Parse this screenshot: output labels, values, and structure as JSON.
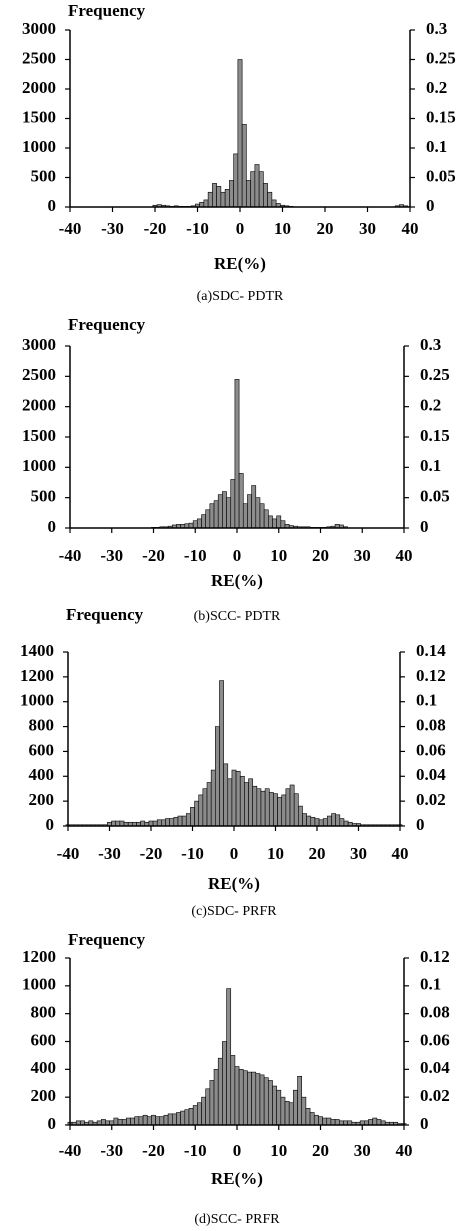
{
  "chart_data": [
    {
      "type": "bar",
      "ylabel": "Frequency",
      "xlabel": "RE(%)",
      "caption": "(a)SDC- PDTR",
      "color": "#8c8c8c",
      "x": [
        -40,
        -39,
        -38,
        -37,
        -36,
        -35,
        -34,
        -33,
        -32,
        -31,
        -30,
        -29,
        -28,
        -27,
        -26,
        -25,
        -24,
        -23,
        -22,
        -21,
        -20,
        -19,
        -18,
        -17,
        -16,
        -15,
        -14,
        -13,
        -12,
        -11,
        -10,
        -9,
        -8,
        -7,
        -6,
        -5,
        -4,
        -3,
        -2,
        -1,
        0,
        1,
        2,
        3,
        4,
        5,
        6,
        7,
        8,
        9,
        10,
        11,
        12,
        13,
        14,
        15,
        16,
        17,
        18,
        19,
        20,
        21,
        22,
        23,
        24,
        25,
        26,
        27,
        28,
        29,
        30,
        31,
        32,
        33,
        34,
        35,
        36,
        37,
        38,
        39,
        40
      ],
      "values": [
        0,
        0,
        0,
        0,
        0,
        0,
        0,
        0,
        0,
        0,
        0,
        0,
        0,
        0,
        0,
        0,
        0,
        0,
        0,
        0,
        30,
        40,
        30,
        20,
        10,
        20,
        10,
        10,
        10,
        20,
        50,
        80,
        120,
        250,
        400,
        350,
        250,
        300,
        450,
        900,
        2500,
        1400,
        450,
        600,
        720,
        600,
        400,
        250,
        120,
        60,
        30,
        20,
        10,
        0,
        0,
        0,
        0,
        0,
        0,
        0,
        0,
        0,
        0,
        0,
        0,
        0,
        0,
        0,
        0,
        0,
        0,
        0,
        0,
        0,
        0,
        0,
        0,
        20,
        40,
        20,
        0
      ],
      "xlim": [
        -40,
        40
      ],
      "xticks": [
        -40,
        -30,
        -20,
        -10,
        0,
        10,
        20,
        30,
        40
      ],
      "ylim": [
        0,
        3000
      ],
      "yticks": [
        0,
        500,
        1000,
        1500,
        2000,
        2500,
        3000
      ],
      "y2lim": [
        0,
        0.3
      ],
      "y2ticks": [
        0,
        0.05,
        0.1,
        0.15,
        0.2,
        0.25,
        0.3
      ]
    },
    {
      "type": "bar",
      "ylabel": "Frequency",
      "xlabel": "RE(%)",
      "caption": "(b)SCC- PDTR",
      "color": "#8c8c8c",
      "x": [
        -40,
        -39,
        -38,
        -37,
        -36,
        -35,
        -34,
        -33,
        -32,
        -31,
        -30,
        -29,
        -28,
        -27,
        -26,
        -25,
        -24,
        -23,
        -22,
        -21,
        -20,
        -19,
        -18,
        -17,
        -16,
        -15,
        -14,
        -13,
        -12,
        -11,
        -10,
        -9,
        -8,
        -7,
        -6,
        -5,
        -4,
        -3,
        -2,
        -1,
        0,
        1,
        2,
        3,
        4,
        5,
        6,
        7,
        8,
        9,
        10,
        11,
        12,
        13,
        14,
        15,
        16,
        17,
        18,
        19,
        20,
        21,
        22,
        23,
        24,
        25,
        26,
        27,
        28,
        29,
        30,
        31,
        32,
        33,
        34,
        35,
        36,
        37,
        38,
        39,
        40
      ],
      "values": [
        0,
        0,
        0,
        0,
        0,
        0,
        0,
        0,
        0,
        0,
        0,
        0,
        0,
        0,
        0,
        0,
        0,
        0,
        0,
        0,
        10,
        10,
        20,
        20,
        30,
        50,
        60,
        60,
        70,
        80,
        120,
        150,
        220,
        300,
        400,
        450,
        550,
        600,
        500,
        800,
        2450,
        900,
        400,
        550,
        700,
        500,
        400,
        300,
        200,
        150,
        200,
        120,
        60,
        40,
        30,
        20,
        20,
        20,
        10,
        10,
        10,
        10,
        20,
        30,
        60,
        50,
        20,
        0,
        0,
        0,
        0,
        0,
        0,
        0,
        0,
        0,
        0,
        0,
        0,
        0,
        0
      ],
      "xlim": [
        -40,
        40
      ],
      "xticks": [
        -40,
        -30,
        -20,
        -10,
        0,
        10,
        20,
        30,
        40
      ],
      "ylim": [
        0,
        3000
      ],
      "yticks": [
        0,
        500,
        1000,
        1500,
        2000,
        2500,
        3000
      ],
      "y2lim": [
        0,
        0.3
      ],
      "y2ticks": [
        0,
        0.05,
        0.1,
        0.15,
        0.2,
        0.25,
        0.3
      ]
    },
    {
      "type": "bar",
      "ylabel": "Frequency",
      "xlabel": "RE(%)",
      "caption": "(c)SDC- PRFR",
      "color": "#8c8c8c",
      "x": [
        -40,
        -39,
        -38,
        -37,
        -36,
        -35,
        -34,
        -33,
        -32,
        -31,
        -30,
        -29,
        -28,
        -27,
        -26,
        -25,
        -24,
        -23,
        -22,
        -21,
        -20,
        -19,
        -18,
        -17,
        -16,
        -15,
        -14,
        -13,
        -12,
        -11,
        -10,
        -9,
        -8,
        -7,
        -6,
        -5,
        -4,
        -3,
        -2,
        -1,
        0,
        1,
        2,
        3,
        4,
        5,
        6,
        7,
        8,
        9,
        10,
        11,
        12,
        13,
        14,
        15,
        16,
        17,
        18,
        19,
        20,
        21,
        22,
        23,
        24,
        25,
        26,
        27,
        28,
        29,
        30,
        31,
        32,
        33,
        34,
        35,
        36,
        37,
        38,
        39,
        40
      ],
      "values": [
        10,
        10,
        10,
        10,
        10,
        10,
        10,
        10,
        10,
        10,
        30,
        40,
        40,
        40,
        30,
        30,
        30,
        30,
        40,
        30,
        40,
        40,
        50,
        50,
        60,
        60,
        70,
        80,
        80,
        100,
        150,
        200,
        250,
        300,
        350,
        450,
        800,
        1170,
        500,
        380,
        450,
        440,
        400,
        350,
        380,
        320,
        300,
        280,
        300,
        270,
        260,
        230,
        250,
        300,
        330,
        260,
        160,
        100,
        80,
        70,
        60,
        50,
        60,
        80,
        100,
        90,
        60,
        40,
        30,
        20,
        20,
        10,
        10,
        10,
        10,
        10,
        10,
        10,
        10,
        10,
        10
      ],
      "xlim": [
        -40,
        40
      ],
      "xticks": [
        -40,
        -30,
        -20,
        -10,
        0,
        10,
        20,
        30,
        40
      ],
      "ylim": [
        0,
        1400
      ],
      "yticks": [
        0,
        200,
        400,
        600,
        800,
        1000,
        1200,
        1400
      ],
      "y2lim": [
        0,
        0.14
      ],
      "y2ticks": [
        0,
        0.02,
        0.04,
        0.06,
        0.08,
        0.1,
        0.12,
        0.14
      ]
    },
    {
      "type": "bar",
      "ylabel": "Frequency",
      "xlabel": "RE(%)",
      "caption": "(d)SCC- PRFR",
      "color": "#8c8c8c",
      "x": [
        -40,
        -39,
        -38,
        -37,
        -36,
        -35,
        -34,
        -33,
        -32,
        -31,
        -30,
        -29,
        -28,
        -27,
        -26,
        -25,
        -24,
        -23,
        -22,
        -21,
        -20,
        -19,
        -18,
        -17,
        -16,
        -15,
        -14,
        -13,
        -12,
        -11,
        -10,
        -9,
        -8,
        -7,
        -6,
        -5,
        -4,
        -3,
        -2,
        -1,
        0,
        1,
        2,
        3,
        4,
        5,
        6,
        7,
        8,
        9,
        10,
        11,
        12,
        13,
        14,
        15,
        16,
        17,
        18,
        19,
        20,
        21,
        22,
        23,
        24,
        25,
        26,
        27,
        28,
        29,
        30,
        31,
        32,
        33,
        34,
        35,
        36,
        37,
        38,
        39,
        40
      ],
      "values": [
        20,
        20,
        30,
        30,
        20,
        30,
        20,
        30,
        40,
        30,
        30,
        50,
        40,
        40,
        50,
        50,
        60,
        60,
        70,
        60,
        70,
        60,
        60,
        70,
        80,
        80,
        90,
        100,
        110,
        120,
        140,
        160,
        200,
        260,
        320,
        400,
        480,
        600,
        980,
        500,
        420,
        400,
        390,
        380,
        380,
        370,
        360,
        340,
        320,
        280,
        250,
        200,
        170,
        160,
        250,
        350,
        200,
        120,
        90,
        70,
        60,
        50,
        50,
        40,
        40,
        30,
        30,
        30,
        20,
        20,
        30,
        30,
        40,
        50,
        40,
        30,
        20,
        20,
        20,
        10,
        10
      ],
      "xlim": [
        -40,
        40
      ],
      "xticks": [
        -40,
        -30,
        -20,
        -10,
        0,
        10,
        20,
        30,
        40
      ],
      "ylim": [
        0,
        1200
      ],
      "yticks": [
        0,
        200,
        400,
        600,
        800,
        1000,
        1200
      ],
      "y2lim": [
        0,
        0.12
      ],
      "y2ticks": [
        0,
        0.02,
        0.04,
        0.06,
        0.08,
        0.1,
        0.12
      ]
    }
  ]
}
